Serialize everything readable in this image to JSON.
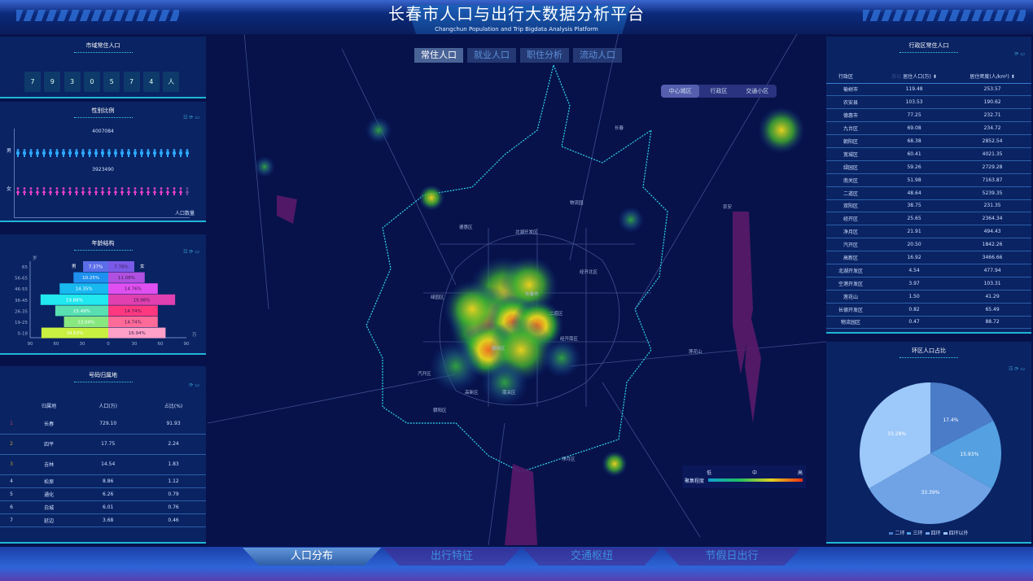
{
  "header": {
    "title": "长春市人口与出行大数据分析平台",
    "subtitle": "Changchun Population and Trip Bigdata Analysis Platform"
  },
  "map_tabs": [
    {
      "label": "常住人口",
      "active": true
    },
    {
      "label": "就业人口"
    },
    {
      "label": "职住分析"
    },
    {
      "label": "流动人口"
    }
  ],
  "map_segment": [
    {
      "label": "中心城区",
      "active": true
    },
    {
      "label": "行政区"
    },
    {
      "label": "交通小区"
    }
  ],
  "map_labels": [
    "长春",
    "德惠区",
    "北湖开发区",
    "物流园",
    "经开北区",
    "农安",
    "绿园区",
    "长春市",
    "二道区",
    "经开南区",
    "朝阳区",
    "汽开区",
    "高新区",
    "南关区",
    "朝阳区",
    "净月区",
    "莲花山"
  ],
  "map_legend": {
    "title": "聚集程度",
    "low": "低",
    "mid": "中",
    "high": "高"
  },
  "resident": {
    "title": "市域常住人口",
    "digits": [
      "7",
      "9",
      "3",
      "0",
      "5",
      "7",
      "4",
      "人"
    ]
  },
  "gender": {
    "title": "性别比例",
    "male_label": "男",
    "female_label": "女",
    "male_value": "4007084",
    "female_value": "3923490",
    "axis_label": "人口数量",
    "tools": "☷ ⟳ ▭"
  },
  "age": {
    "title": "年龄结构",
    "tools": "☷ ⟳ ▭",
    "y_unit": "岁",
    "x_unit": "万",
    "male": "男",
    "female": "女"
  },
  "chart_data": {
    "type": "bar",
    "orientation": "horizontal-pyramid",
    "categories": [
      "65",
      "56-65",
      "46-55",
      "36-45",
      "26-35",
      "19-25",
      "0-18"
    ],
    "x_ticks": [
      "90",
      "60",
      "30",
      "0",
      "30",
      "60",
      "90"
    ],
    "xlim": [
      -90,
      90
    ],
    "series": [
      {
        "name": "男",
        "values": [
          29,
          40,
          56,
          78,
          61,
          51,
          77
        ],
        "labels": [
          "7.37%",
          "10.25%",
          "14.35%",
          "19.88%",
          "15.49%",
          "13.04%",
          "19.63%"
        ],
        "colors": [
          "#5b6ee8",
          "#1e90f0",
          "#18b8f0",
          "#20e8ee",
          "#58e0b0",
          "#88e880",
          "#c8f040"
        ]
      },
      {
        "name": "女",
        "values": [
          30,
          42,
          57,
          77,
          57,
          57,
          66
        ],
        "labels": [
          "7.78%",
          "11.08%",
          "14.76%",
          "19.98%",
          "14.74%",
          "14.74%",
          "16.94%"
        ],
        "colors": [
          "#7a5ae8",
          "#b050e0",
          "#e050f0",
          "#e040b0",
          "#ff3880",
          "#ff6a98",
          "#ffa0c8"
        ]
      }
    ]
  },
  "origin": {
    "title": "号码归属地",
    "tools": "⟳ ▭",
    "headers": [
      "归属地",
      "人口(万)",
      "占比(%)"
    ],
    "rows": [
      [
        "1",
        "长春",
        "729.10",
        "91.93"
      ],
      [
        "2",
        "四平",
        "17.75",
        "2.24"
      ],
      [
        "3",
        "吉林",
        "14.54",
        "1.83"
      ],
      [
        "4",
        "松原",
        "8.86",
        "1.12"
      ],
      [
        "5",
        "通化",
        "6.26",
        "0.79"
      ],
      [
        "6",
        "白城",
        "6.01",
        "0.76"
      ],
      [
        "7",
        "延边",
        "3.68",
        "0.46"
      ]
    ]
  },
  "district": {
    "title": "行政区常住人口",
    "tools": "⟳ ▭",
    "headers": [
      "行政区",
      "居住人口(万)",
      "居住密度(人/km²)"
    ],
    "sort_hint": "办公",
    "rows": [
      [
        "榆树市",
        "119.48",
        "253.57"
      ],
      [
        "农安县",
        "103.53",
        "190.62"
      ],
      [
        "德惠市",
        "77.25",
        "232.71"
      ],
      [
        "九台区",
        "69.08",
        "234.72"
      ],
      [
        "朝阳区",
        "68.38",
        "2852.54"
      ],
      [
        "宽城区",
        "60.41",
        "4021.35"
      ],
      [
        "绿园区",
        "59.26",
        "2729.28"
      ],
      [
        "南关区",
        "51.98",
        "7163.87"
      ],
      [
        "二道区",
        "48.64",
        "5239.35"
      ],
      [
        "双阳区",
        "38.75",
        "231.35"
      ],
      [
        "经开区",
        "25.65",
        "2364.34"
      ],
      [
        "净月区",
        "21.91",
        "494.43"
      ],
      [
        "汽开区",
        "20.50",
        "1842.26"
      ],
      [
        "高新区",
        "16.92",
        "3466.66"
      ],
      [
        "北湖开发区",
        "4.54",
        "477.94"
      ],
      [
        "空港开发区",
        "3.97",
        "103.31"
      ],
      [
        "莲花山",
        "1.50",
        "41.29"
      ],
      [
        "长德开发区",
        "0.82",
        "65.49"
      ],
      [
        "物流园区",
        "0.47",
        "88.72"
      ]
    ]
  },
  "ring": {
    "title": "环区人口占比",
    "tools": "☷ ⟳ ▭",
    "chart_data": {
      "type": "pie",
      "labels": [
        "二环",
        "三环",
        "四环",
        "四环以外"
      ],
      "values": [
        17.4,
        15.93,
        33.39,
        33.28
      ],
      "value_labels": [
        "17.4%",
        "15.93%",
        "33.39%",
        "33.28%"
      ],
      "colors": [
        "#4a7cc8",
        "#55a0e0",
        "#6fa3e6",
        "#9cc8fa"
      ]
    }
  },
  "bottom_nav": [
    {
      "label": "人口分布",
      "active": true
    },
    {
      "label": "出行特征"
    },
    {
      "label": "交通枢纽"
    },
    {
      "label": "节假日出行"
    }
  ]
}
